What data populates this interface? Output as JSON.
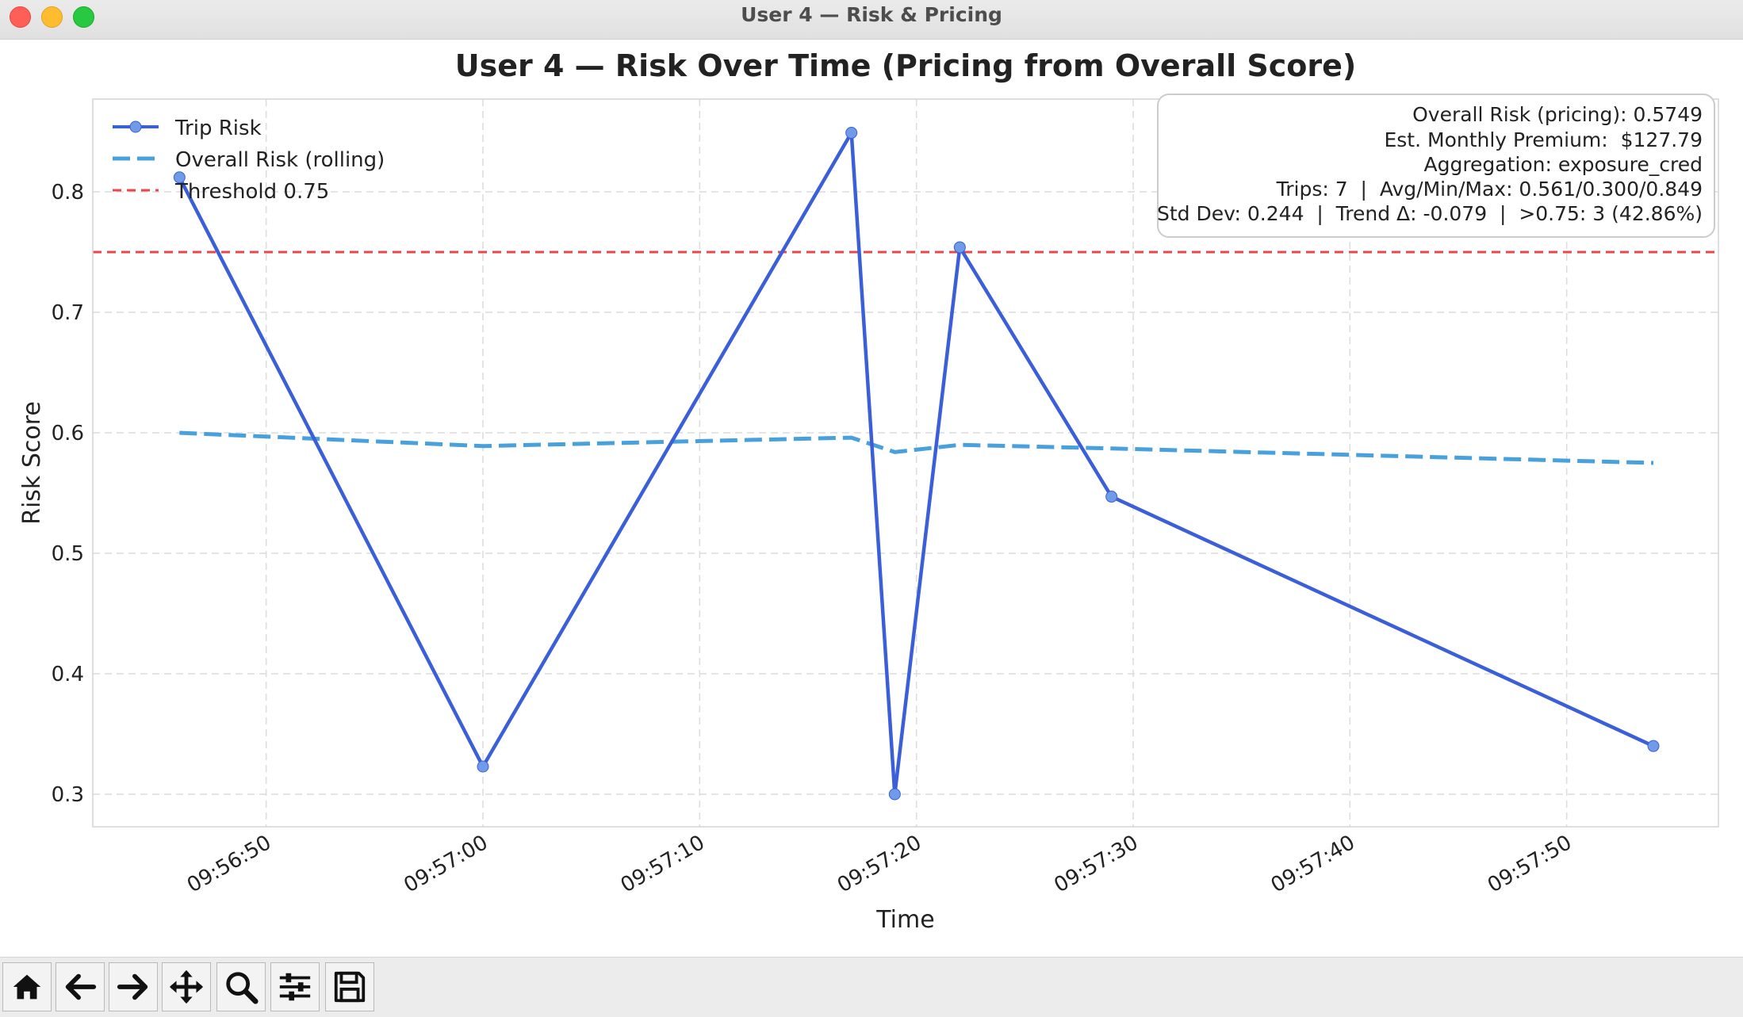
{
  "window": {
    "title": "User 4 — Risk & Pricing"
  },
  "toolbar": {
    "buttons": [
      {
        "icon": "home-icon"
      },
      {
        "icon": "back-arrow-icon"
      },
      {
        "icon": "forward-arrow-icon"
      },
      {
        "icon": "pan-icon"
      },
      {
        "icon": "zoom-icon"
      },
      {
        "icon": "configure-subplots-icon"
      },
      {
        "icon": "save-icon"
      }
    ]
  },
  "chart_data": {
    "type": "line",
    "title": "User 4 — Risk Over Time (Pricing from Overall Score)",
    "xlabel": "Time",
    "ylabel": "Risk Score",
    "xlim": [
      "09:56:42",
      "09:57:57"
    ],
    "ylim": [
      0.273,
      0.877
    ],
    "xticks": [
      "09:56:50",
      "09:57:00",
      "09:57:10",
      "09:57:20",
      "09:57:30",
      "09:57:40",
      "09:57:50"
    ],
    "yticks": [
      "0.3",
      "0.4",
      "0.5",
      "0.6",
      "0.7",
      "0.8"
    ],
    "grid": true,
    "legend_position": "top-left",
    "series": [
      {
        "name": "Trip Risk",
        "color": "#3a5fd9",
        "style": "solid-with-markers",
        "marker_color": "#6f9be8",
        "x": [
          "09:56:46",
          "09:57:00",
          "09:57:17",
          "09:57:19",
          "09:57:22",
          "09:57:29",
          "09:57:54"
        ],
        "values": [
          0.812,
          0.323,
          0.849,
          0.3,
          0.754,
          0.547,
          0.34
        ]
      },
      {
        "name": "Overall Risk (rolling)",
        "color": "#48a0dc",
        "style": "dashed",
        "x": [
          "09:56:46",
          "09:57:00",
          "09:57:17",
          "09:57:19",
          "09:57:22",
          "09:57:29",
          "09:57:54"
        ],
        "values": [
          0.6,
          0.589,
          0.596,
          0.584,
          0.59,
          0.587,
          0.575
        ]
      }
    ],
    "threshold": {
      "label": "Threshold 0.75",
      "value": 0.75,
      "color": "#e8474b",
      "style": "dashed"
    },
    "annotation_box": {
      "position": "top-right",
      "lines": [
        "Overall Risk (pricing): 0.5749",
        "Est. Monthly Premium:  $127.79",
        "Aggregation: exposure_cred",
        "Trips: 7  |  Avg/Min/Max: 0.561/0.300/0.849",
        "Std Dev: 0.244  |  Trend Δ: -0.079  |  >0.75: 3 (42.86%)"
      ]
    }
  }
}
